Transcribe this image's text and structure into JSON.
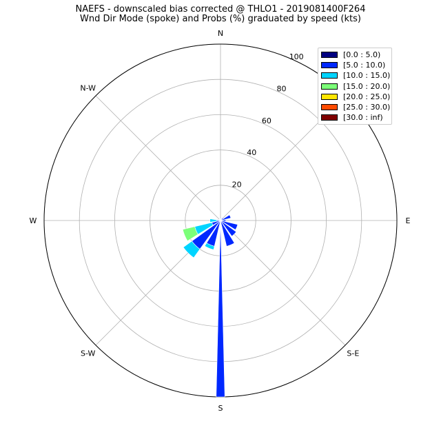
{
  "title_line1": "NAEFS - downscaled bias corrected @ THLO1 - 2019081400F264",
  "title_line2": "Wnd Dir Mode (spoke) and Probs (%) graduated by speed (kts)",
  "chart_data": {
    "type": "windrose",
    "title": "NAEFS - downscaled bias corrected @ THLO1 - 2019081400F264",
    "subtitle": "Wnd Dir Mode (spoke) and Probs (%) graduated by speed (kts)",
    "directions": [
      "N",
      "NNE",
      "NE",
      "ENE",
      "E",
      "ESE",
      "SE",
      "SSE",
      "S",
      "SSW",
      "SW",
      "WSW",
      "W",
      "WNW",
      "NW",
      "NNW"
    ],
    "compass_labels": [
      {
        "label": "N",
        "angle": 0
      },
      {
        "label": "E",
        "angle": 90
      },
      {
        "label": "S-E",
        "angle": 135
      },
      {
        "label": "S",
        "angle": 180
      },
      {
        "label": "S-W",
        "angle": 225
      },
      {
        "label": "W",
        "angle": 270
      },
      {
        "label": "N-W",
        "angle": 315
      }
    ],
    "radial_ticks": [
      20,
      40,
      60,
      80,
      100
    ],
    "rmax": 100,
    "spoke_direction": "S",
    "spoke_value": 100,
    "legend_position": "upper-right",
    "series": [
      {
        "name": "[0.0 : 5.0)",
        "color": "#000080",
        "values": [
          0,
          0,
          0,
          0,
          0,
          0,
          0,
          0,
          0,
          0,
          0,
          0,
          0,
          0,
          0,
          0
        ]
      },
      {
        "name": "[5.0 : 10.0)",
        "color": "#0028ff",
        "values": [
          1,
          1,
          2,
          6,
          3,
          10,
          11,
          15,
          100,
          15,
          20,
          5,
          2,
          1,
          1,
          1
        ]
      },
      {
        "name": "[10.0 : 15.0)",
        "color": "#00d4ff",
        "values": [
          0,
          0,
          0,
          0,
          0,
          0,
          0,
          0,
          0,
          2,
          6,
          10,
          4,
          0,
          0,
          0
        ]
      },
      {
        "name": "[15.0 : 20.0)",
        "color": "#7cff79",
        "values": [
          0,
          0,
          0,
          0,
          0,
          0,
          0,
          0,
          0,
          0,
          0,
          7,
          0,
          0,
          0,
          0
        ]
      },
      {
        "name": "[20.0 : 25.0)",
        "color": "#ffe600",
        "values": [
          0,
          0,
          0,
          0,
          0,
          0,
          0,
          0,
          0,
          0,
          0,
          0,
          0,
          0,
          0,
          0
        ]
      },
      {
        "name": "[25.0 : 30.0)",
        "color": "#ff4a00",
        "values": [
          0,
          0,
          0,
          0,
          0,
          0,
          0,
          0,
          0,
          0,
          0,
          0,
          0,
          0,
          0,
          0
        ]
      },
      {
        "name": "[30.0 : inf)",
        "color": "#800000",
        "values": [
          0,
          0,
          0,
          0,
          0,
          0,
          0,
          0,
          0,
          0,
          0,
          0,
          0,
          0,
          0,
          0
        ]
      }
    ]
  }
}
